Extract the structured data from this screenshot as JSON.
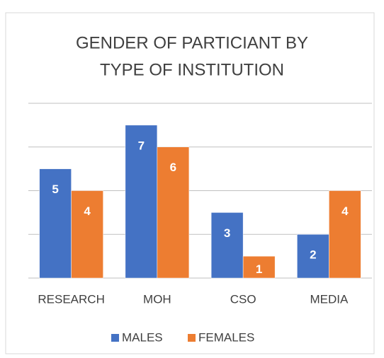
{
  "chart_data": {
    "type": "bar",
    "title": [
      "GENDER OF PARTICIANT BY",
      "TYPE OF INSTITUTION"
    ],
    "categories": [
      "RESEARCH",
      "MOH",
      "CSO",
      "MEDIA"
    ],
    "series": [
      {
        "name": "MALES",
        "color": "#4472c4",
        "values": [
          5,
          7,
          3,
          2
        ]
      },
      {
        "name": "FEMALES",
        "color": "#ed7d31",
        "values": [
          4,
          6,
          1,
          4
        ]
      }
    ],
    "ylim": [
      0,
      8
    ],
    "yticks": [
      0,
      2,
      4,
      6,
      8
    ],
    "grid": true,
    "legend": "bottom"
  }
}
